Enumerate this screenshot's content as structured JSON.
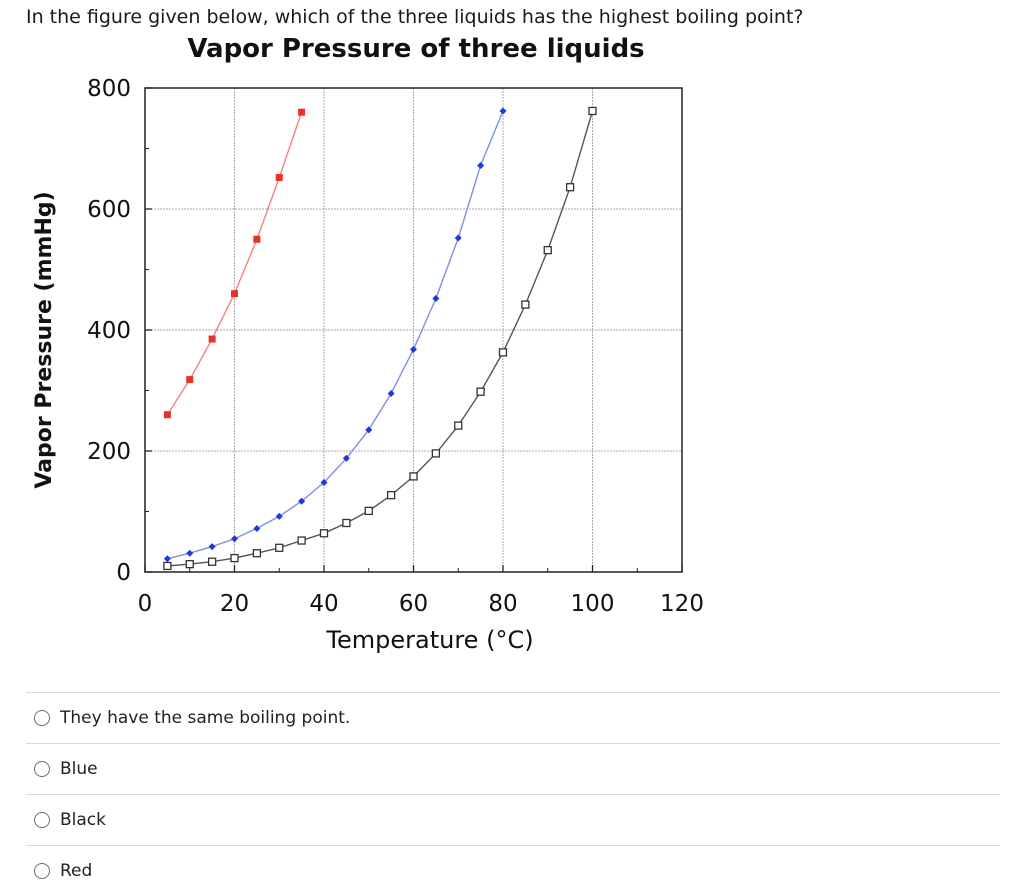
{
  "question": "In the figure given below, which of the three liquids has the highest boiling point?",
  "chart_data": {
    "type": "line",
    "title": "Vapor Pressure of three liquids",
    "xlabel": "Temperature (°C)",
    "ylabel": "Vapor Pressure (mmHg)",
    "xlim": [
      0,
      120
    ],
    "ylim": [
      0,
      800
    ],
    "xticks": [
      0,
      20,
      40,
      60,
      80,
      100,
      120
    ],
    "yticks": [
      0,
      200,
      400,
      600,
      800
    ],
    "grid": true,
    "series": [
      {
        "color": "#e8302a",
        "line_color": "#f0837e",
        "marker": "square",
        "x": [
          5,
          10,
          15,
          20,
          25,
          30,
          35
        ],
        "y": [
          260,
          318,
          385,
          460,
          550,
          652,
          760
        ]
      },
      {
        "color": "#1a3adf",
        "line_color": "#7f8fe8",
        "marker": "diamond",
        "x": [
          5,
          10,
          15,
          20,
          25,
          30,
          35,
          40,
          45,
          50,
          55,
          60,
          65,
          70,
          75,
          80
        ],
        "y": [
          22,
          31,
          42,
          55,
          72,
          92,
          117,
          148,
          188,
          235,
          295,
          368,
          452,
          552,
          672,
          762
        ]
      },
      {
        "color": "#333333",
        "line_color": "#555555",
        "marker": "open-square",
        "x": [
          5,
          10,
          15,
          20,
          25,
          30,
          35,
          40,
          45,
          50,
          55,
          60,
          65,
          70,
          75,
          80,
          85,
          90,
          95,
          100
        ],
        "y": [
          10,
          13,
          17,
          23,
          31,
          40,
          52,
          64,
          81,
          101,
          127,
          158,
          196,
          242,
          298,
          363,
          442,
          532,
          636,
          762
        ]
      }
    ]
  },
  "options": [
    {
      "label": "They have the same boiling point."
    },
    {
      "label": "Blue"
    },
    {
      "label": "Black"
    },
    {
      "label": "Red"
    }
  ]
}
